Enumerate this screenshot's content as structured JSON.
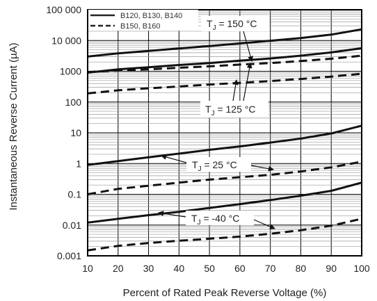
{
  "chart_data": {
    "type": "line",
    "title": "",
    "xlabel": "Percent of Rated Peak Reverse Voltage (%)",
    "ylabel": "Instantaneous Reverse Current (µA)",
    "x_ticks": [
      10,
      20,
      30,
      40,
      50,
      60,
      70,
      80,
      90,
      100
    ],
    "x_tick_labels": [
      "10",
      "20",
      "30",
      "40",
      "50",
      "60",
      "70",
      "80",
      "90",
      "100"
    ],
    "xlim": [
      10,
      100
    ],
    "y_scale": "log",
    "ylim": [
      0.001,
      100000
    ],
    "y_ticks": [
      0.001,
      0.01,
      0.1,
      1,
      10,
      100,
      1000,
      10000,
      100000
    ],
    "y_tick_labels": [
      "0.001",
      "0.01",
      "0.1",
      "1",
      "10",
      "100",
      "1000",
      "10 000",
      "100 000"
    ],
    "grid": true,
    "legend": {
      "position": "top-left",
      "entries": [
        {
          "label": "B120, B130, B140",
          "style": "solid"
        },
        {
          "label": "B150, B160",
          "style": "dashed"
        }
      ]
    },
    "annotations": [
      {
        "label": "150 °C",
        "prefix": "T",
        "sub": "J"
      },
      {
        "label": "125 °C",
        "prefix": "T",
        "sub": "J"
      },
      {
        "label": "25 °C",
        "prefix": "T",
        "sub": "J"
      },
      {
        "label": "-40 °C",
        "prefix": "T",
        "sub": "J"
      }
    ],
    "series": [
      {
        "group": "B120, B130, B140",
        "temperature": "150 °C",
        "style": "solid",
        "x": [
          10,
          20,
          30,
          40,
          50,
          60,
          70,
          80,
          90,
          100
        ],
        "values": [
          3000,
          3800,
          4600,
          5500,
          6600,
          8000,
          9800,
          12000,
          15500,
          23000
        ]
      },
      {
        "group": "B120, B130, B140",
        "temperature": "125 °C",
        "style": "solid",
        "x": [
          10,
          20,
          30,
          40,
          50,
          60,
          70,
          80,
          90,
          100
        ],
        "values": [
          900,
          1150,
          1350,
          1600,
          1850,
          2200,
          2600,
          3200,
          4100,
          5600
        ]
      },
      {
        "group": "B150, B160",
        "temperature": "150 °C",
        "style": "dashed",
        "x": [
          10,
          20,
          30,
          40,
          50,
          60,
          70,
          80,
          90,
          100
        ],
        "values": [
          950,
          1050,
          1150,
          1300,
          1450,
          1650,
          1850,
          2150,
          2550,
          3200
        ]
      },
      {
        "group": "B150, B160",
        "temperature": "125 °C",
        "style": "dashed",
        "x": [
          10,
          20,
          30,
          40,
          50,
          60,
          70,
          80,
          90,
          100
        ],
        "values": [
          190,
          240,
          280,
          320,
          370,
          420,
          480,
          560,
          670,
          830
        ]
      },
      {
        "group": "B120, B130, B140",
        "temperature": "25 °C",
        "style": "solid",
        "x": [
          10,
          20,
          30,
          40,
          50,
          60,
          70,
          80,
          90,
          100
        ],
        "values": [
          0.9,
          1.2,
          1.6,
          2.1,
          2.8,
          3.6,
          4.8,
          6.5,
          9.5,
          17
        ]
      },
      {
        "group": "B150, B160",
        "temperature": "25 °C",
        "style": "dashed",
        "x": [
          10,
          20,
          30,
          40,
          50,
          60,
          70,
          80,
          90,
          100
        ],
        "values": [
          0.1,
          0.15,
          0.19,
          0.24,
          0.3,
          0.36,
          0.43,
          0.55,
          0.75,
          1.15
        ]
      },
      {
        "group": "B120, B130, B140",
        "temperature": "-40 °C",
        "style": "solid",
        "x": [
          10,
          20,
          30,
          40,
          50,
          60,
          70,
          80,
          90,
          100
        ],
        "values": [
          0.012,
          0.016,
          0.021,
          0.027,
          0.036,
          0.048,
          0.065,
          0.09,
          0.13,
          0.24
        ]
      },
      {
        "group": "B150, B160",
        "temperature": "-40 °C",
        "style": "dashed",
        "x": [
          10,
          20,
          30,
          40,
          50,
          60,
          70,
          80,
          90,
          100
        ],
        "values": [
          0.0015,
          0.0021,
          0.0026,
          0.0031,
          0.0036,
          0.0042,
          0.0052,
          0.0068,
          0.0095,
          0.016
        ]
      }
    ]
  }
}
